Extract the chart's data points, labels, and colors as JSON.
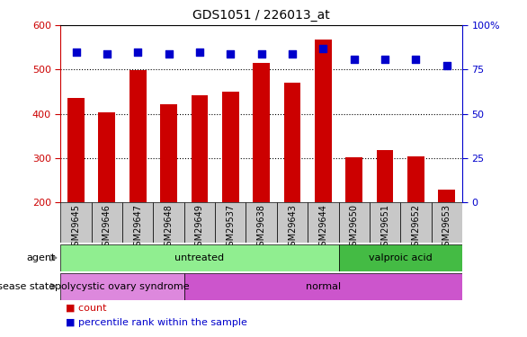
{
  "title": "GDS1051 / 226013_at",
  "samples": [
    "GSM29645",
    "GSM29646",
    "GSM29647",
    "GSM29648",
    "GSM29649",
    "GSM29537",
    "GSM29638",
    "GSM29643",
    "GSM29644",
    "GSM29650",
    "GSM29651",
    "GSM29652",
    "GSM29653"
  ],
  "counts": [
    435,
    403,
    498,
    422,
    441,
    450,
    515,
    470,
    568,
    302,
    318,
    303,
    228
  ],
  "percentiles": [
    85,
    84,
    85,
    84,
    85,
    84,
    84,
    84,
    87,
    81,
    81,
    81,
    77
  ],
  "bar_color": "#cc0000",
  "dot_color": "#0000cc",
  "ylim_left": [
    200,
    600
  ],
  "ylim_right": [
    0,
    100
  ],
  "yticks_left": [
    200,
    300,
    400,
    500,
    600
  ],
  "yticks_right": [
    0,
    25,
    50,
    75,
    100
  ],
  "agent_groups": [
    {
      "label": "untreated",
      "start": 0,
      "end": 9,
      "color": "#90ee90"
    },
    {
      "label": "valproic acid",
      "start": 9,
      "end": 13,
      "color": "#44bb44"
    }
  ],
  "disease_groups": [
    {
      "label": "polycystic ovary syndrome",
      "start": 0,
      "end": 4,
      "color": "#dd88dd"
    },
    {
      "label": "normal",
      "start": 4,
      "end": 13,
      "color": "#cc55cc"
    }
  ],
  "agent_row_label": "agent",
  "disease_row_label": "disease state",
  "legend_count_label": "count",
  "legend_pct_label": "percentile rank within the sample",
  "bar_color_left": "#cc0000",
  "dot_color_right": "#0000cc",
  "bar_width": 0.55,
  "dot_size": 40,
  "sample_label_fontsize": 7,
  "row_label_fontsize": 8,
  "legend_fontsize": 8,
  "title_fontsize": 10
}
